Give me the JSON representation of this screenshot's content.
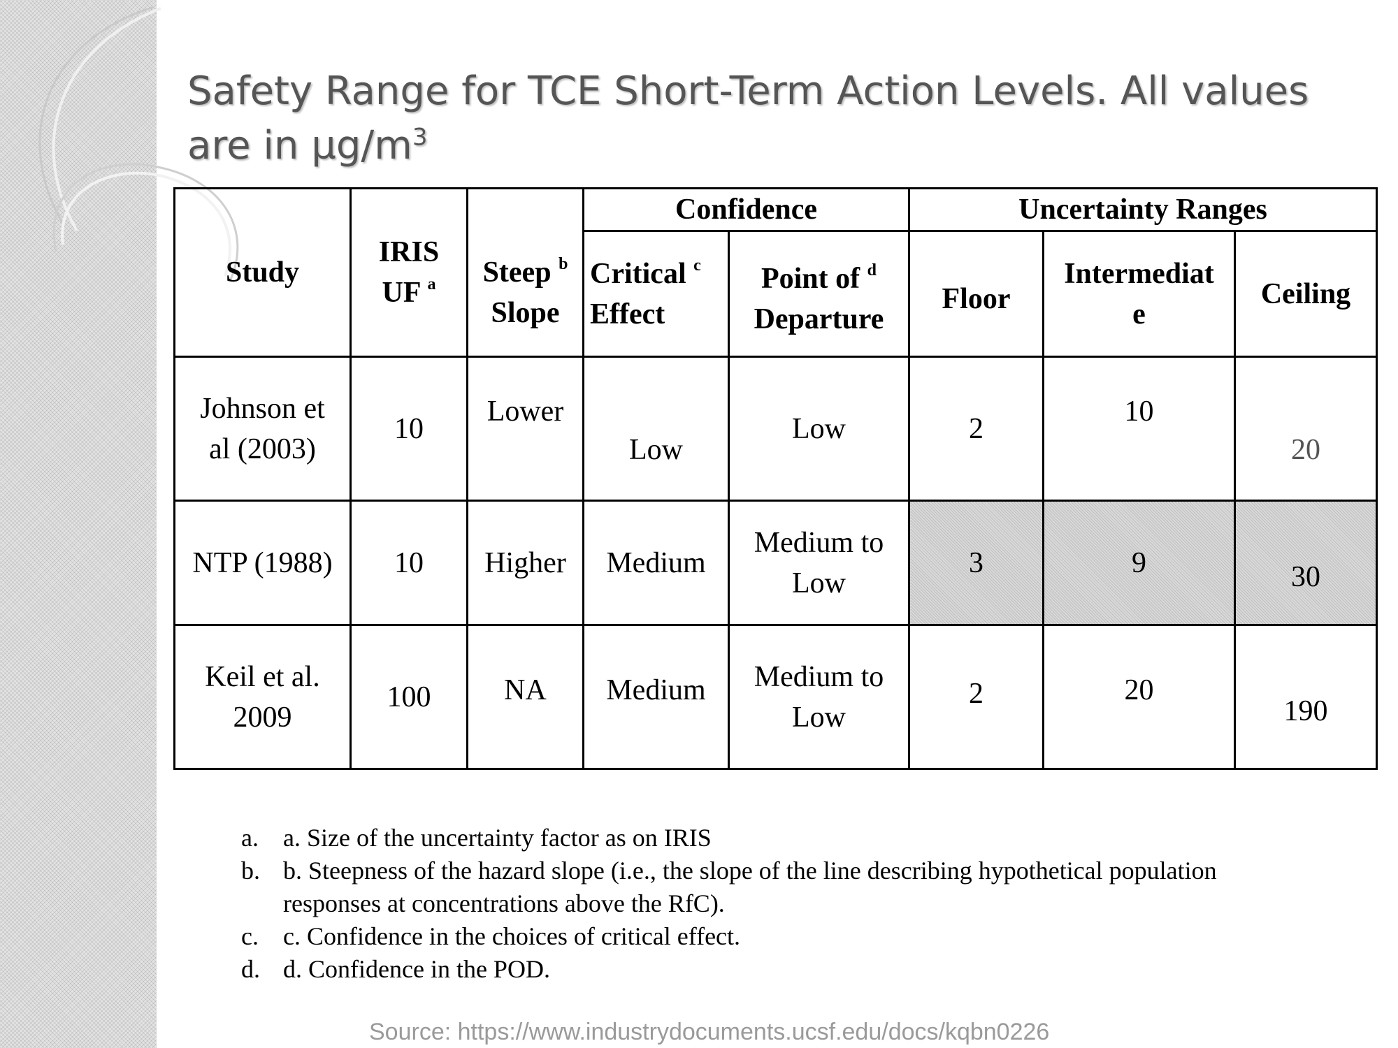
{
  "title": {
    "line1": "Safety Range for TCE Short-Term Action Levels.  All values",
    "line2": "are in µg/m",
    "sup": "3"
  },
  "table": {
    "group_headers": {
      "confidence": "Confidence",
      "uncertainty": "Uncertainty Ranges"
    },
    "headers": {
      "study": "Study",
      "iris_line1": "IRIS",
      "iris_line2": "UF",
      "iris_sup": "a",
      "steep_line1": "Steep",
      "steep_sup": "b",
      "steep_line2": "Slope",
      "critical_line1": "Critical",
      "critical_sup": "c",
      "critical_line2": "Effect",
      "pod_line1": "Point of",
      "pod_sup": "d",
      "pod_line2": "Departure",
      "floor": "Floor",
      "intermediate_line1": "Intermediat",
      "intermediate_line2": "e",
      "ceiling": "Ceiling"
    },
    "rows": [
      {
        "study_line1": "Johnson et",
        "study_line2": "al (2003)",
        "iris": "10",
        "steep": "Lower",
        "critical": "Low",
        "pod": "Low",
        "floor": "2",
        "intermediate": "10",
        "ceiling": "20"
      },
      {
        "study_line1": "NTP (1988)",
        "study_line2": "",
        "iris": "10",
        "steep": "Higher",
        "critical": "Medium",
        "pod_line1": "Medium to",
        "pod_line2": "Low",
        "floor": "3",
        "intermediate": "9",
        "ceiling": "30"
      },
      {
        "study_line1": "Keil et al.",
        "study_line2": "2009",
        "iris": "100",
        "steep": "NA",
        "critical": "Medium",
        "pod_line1": "Medium to",
        "pod_line2": "Low",
        "floor": "2",
        "intermediate": "20",
        "ceiling": "190"
      }
    ]
  },
  "footnotes": [
    {
      "marker": "a.",
      "text": "a. Size of the uncertainty factor as on IRIS"
    },
    {
      "marker": "b.",
      "text": "b. Steepness of the hazard slope (i.e., the slope of the line describing hypothetical population responses at concentrations above the RfC)."
    },
    {
      "marker": "c.",
      "text": "c. Confidence in the choices of critical effect."
    },
    {
      "marker": "d.",
      "text": "d. Confidence in the POD."
    }
  ],
  "source": "Source: https://www.industrydocuments.ucsf.edu/docs/kqbn0226"
}
